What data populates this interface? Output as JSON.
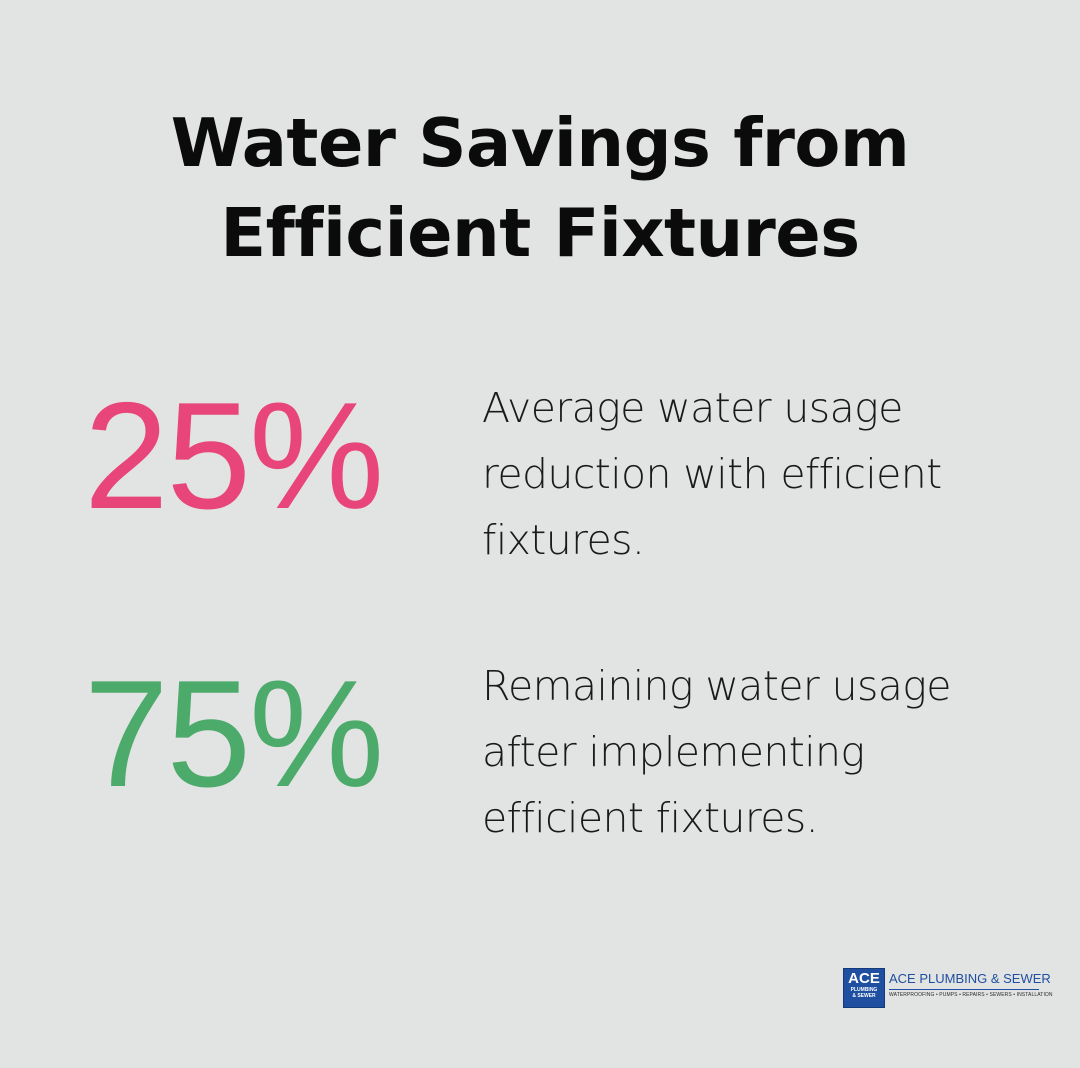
{
  "title": {
    "line1": "Water Savings from",
    "line2": "Efficient Fixtures"
  },
  "stats": [
    {
      "value": "25%",
      "color": "#e8457a",
      "description": [
        "Average water usage",
        "reduction with efficient",
        "fixtures."
      ]
    },
    {
      "value": "75%",
      "color": "#4caa6a",
      "description": [
        "Remaining water usage",
        "after implementing",
        "efficient fixtures."
      ]
    }
  ],
  "logo": {
    "badge_main": "ACE",
    "badge_line1": "PLUMBING",
    "badge_line2": "& SEWER",
    "name": "ACE PLUMBING & SEWER",
    "tagline": "WATERPROOFING • PUMPS • REPAIRS • SEWERS • INSTALLATION",
    "brand_color": "#1f4fa0"
  }
}
